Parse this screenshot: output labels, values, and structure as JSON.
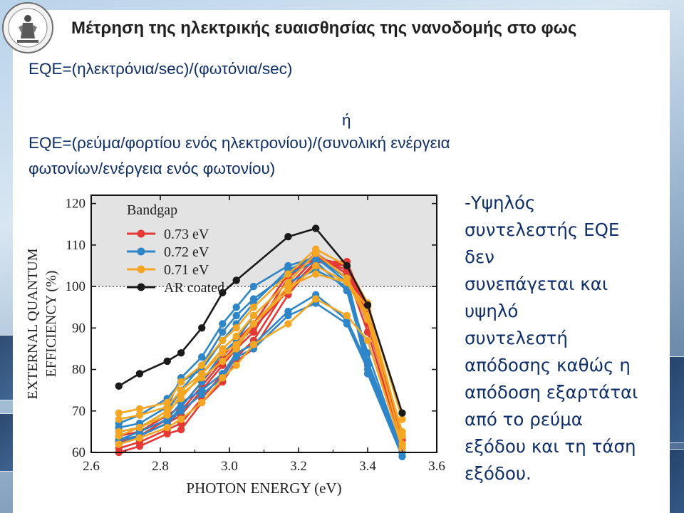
{
  "slide": {
    "title": "Μέτρηση της ηλεκτρικής ευαισθησίας της νανοδομής στο φως",
    "eq1": "EQE=(ηλεκτρόνια/sec)/(φωτόνια/sec)",
    "or": "ή",
    "eq2_line1": "EQE=(ρεύμα/φορτίου ενός ηλεκτρονίου)/(συνολική ενέργεια",
    "eq2_line2": "φωτονίων/ενέργεια ενός φωτονίου)",
    "side_lines": [
      "-Υψηλός",
      "συντελεστής EQE",
      "δεν",
      "συνεπάγεται και",
      "υψηλό",
      "συντελεστή",
      "απόδοσης καθώς η",
      "απόδοση  εξαρτάται",
      "από το ρεύμα",
      "εξόδου και τη τάση",
      "εξόδου."
    ],
    "logo_icon": "university-seal-icon"
  },
  "chart_data": {
    "type": "line",
    "xlabel": "PHOTON ENERGY (eV)",
    "ylabel_line1": "EXTERNAL QUANTUM",
    "ylabel_line2": "EFFICIENCY (%)",
    "xlim": [
      2.6,
      3.6
    ],
    "ylim": [
      60,
      122
    ],
    "xticks": [
      "2.6",
      "2.8",
      "3.0",
      "3.2",
      "3.4",
      "3.6"
    ],
    "yticks": [
      "60",
      "70",
      "80",
      "90",
      "100",
      "110",
      "120"
    ],
    "reference_line": 100,
    "shaded_above": 100,
    "legend_title": "Bandgap",
    "legend_position": "top-left",
    "colors": {
      "0.73 eV": "#e53935",
      "0.72 eV": "#2e86c8",
      "0.71 eV": "#f5a623",
      "AR coated": "#1a1a1a"
    },
    "x": [
      2.68,
      2.74,
      2.82,
      2.86,
      2.92,
      2.98,
      3.02,
      3.07,
      3.17,
      3.25,
      3.34,
      3.4,
      3.5
    ],
    "series": [
      {
        "name": "0.73 eV",
        "color": "#e53935",
        "curves": [
          [
            60,
            61.5,
            64.5,
            65.5,
            72,
            77,
            82,
            85,
            98,
            106,
            105,
            93,
            64
          ],
          [
            61,
            62.5,
            65.5,
            67,
            73,
            79,
            83,
            87,
            100,
            107,
            104,
            91,
            63
          ],
          [
            62.5,
            64,
            67,
            69,
            75,
            81,
            85,
            89,
            102,
            108,
            103,
            89,
            62
          ],
          [
            64,
            65,
            69,
            71,
            77,
            83,
            87,
            91,
            103,
            107,
            105,
            92,
            63
          ],
          [
            63,
            64,
            68,
            70,
            76,
            82,
            86,
            90,
            99,
            106,
            106,
            94,
            62
          ]
        ]
      },
      {
        "name": "0.72 eV",
        "color": "#2e86c8",
        "curves": [
          [
            66,
            67,
            71,
            78,
            83,
            91,
            95,
            100,
            105,
            107,
            101,
            79,
            59
          ],
          [
            65,
            66,
            70,
            75,
            81,
            89,
            93,
            97,
            103,
            106,
            99,
            81,
            60
          ],
          [
            63,
            64,
            67,
            71,
            77,
            84,
            87,
            93,
            101,
            104,
            100,
            84,
            60
          ],
          [
            67,
            69,
            73,
            77,
            80,
            87,
            91,
            96,
            104,
            107,
            102,
            82,
            60
          ],
          [
            62,
            64,
            67,
            70,
            74,
            78,
            83,
            85,
            93,
            96,
            91,
            80,
            60
          ],
          [
            63,
            65,
            68,
            72,
            75,
            79,
            84,
            86,
            94,
            98,
            92,
            81,
            61
          ]
        ]
      },
      {
        "name": "0.71 eV",
        "color": "#f5a623",
        "curves": [
          [
            69.5,
            70.5,
            72,
            77,
            81,
            87,
            90,
            95,
            103,
            109,
            105,
            96,
            68
          ],
          [
            68,
            69,
            71,
            75,
            79,
            85,
            88,
            93,
            101,
            108,
            102,
            93,
            65
          ],
          [
            64,
            66,
            69,
            74,
            78,
            82,
            85,
            91,
            99,
            105,
            101,
            92,
            62
          ],
          [
            62,
            63.5,
            66,
            68,
            72,
            78,
            81,
            86,
            91,
            97,
            93,
            87,
            61
          ],
          [
            65,
            66,
            70,
            73,
            79,
            84,
            86,
            91,
            100,
            103,
            101,
            95,
            64
          ]
        ]
      },
      {
        "name": "AR coated",
        "color": "#1a1a1a",
        "curves": [
          [
            76,
            79,
            82,
            84,
            90,
            98.5,
            101.5,
            null,
            112,
            114,
            105,
            95.5,
            69.5
          ]
        ]
      }
    ]
  }
}
